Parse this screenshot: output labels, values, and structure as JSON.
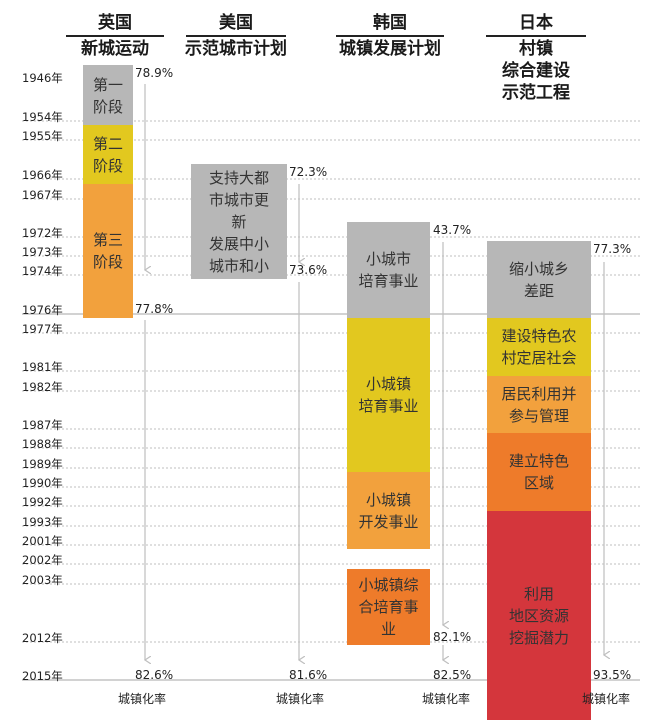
{
  "chart_data": {
    "type": "table",
    "columns": [
      {
        "id": "uk",
        "title": "英国\n新城运动"
      },
      {
        "id": "us",
        "title": "美国\n示范城市计划"
      },
      {
        "id": "kr",
        "title": "韩国\n城镇发展计划"
      },
      {
        "id": "jp",
        "title": "日本\n村镇\n综合建设\n示范工程"
      }
    ],
    "years": [
      "1946年",
      "1954年",
      "1955年",
      "1966年",
      "1967年",
      "1972年",
      "1973年",
      "1974年",
      "1976年",
      "1977年",
      "1981年",
      "1982年",
      "1987年",
      "1988年",
      "1989年",
      "1990年",
      "1992年",
      "1993年",
      "2001年",
      "2002年",
      "2003年",
      "2012年",
      "2015年"
    ],
    "blocks": [
      {
        "col": "uk",
        "label": "第一\n阶段",
        "start": "1946年",
        "end": "1954年",
        "color": "#b7b7b7"
      },
      {
        "col": "uk",
        "label": "第二\n阶段",
        "start": "1955年",
        "end": "1966年",
        "color": "#e2c81f"
      },
      {
        "col": "uk",
        "label": "第三\n阶段",
        "start": "1967年",
        "end": "1976年",
        "color": "#f2a13d"
      },
      {
        "col": "us",
        "label": "支持大都\n市城市更\n新\n发展中小\n城市和小",
        "start": "1966年",
        "end": "1974年",
        "color": "#b7b7b7"
      },
      {
        "col": "kr",
        "label": "小城市\n培育事业",
        "start": "1972年",
        "end": "1976年",
        "color": "#b7b7b7"
      },
      {
        "col": "kr",
        "label": "小城镇\n培育事业",
        "start": "1977年",
        "end": "1989年",
        "color": "#e2c81f"
      },
      {
        "col": "kr",
        "label": "小城镇\n开发事业",
        "start": "1990年",
        "end": "2001年",
        "color": "#f2a13d"
      },
      {
        "col": "kr",
        "label": "小城镇综\n合培育事\n业",
        "start": "2003年",
        "end": "2012年",
        "color": "#ee7b2a"
      },
      {
        "col": "jp",
        "label": "缩小城乡\n差距",
        "start": "1973年",
        "end": "1976年",
        "color": "#b7b7b7"
      },
      {
        "col": "jp",
        "label": "建设特色农\n村定居社会",
        "start": "1977年",
        "end": "1981年",
        "color": "#e2c81f"
      },
      {
        "col": "jp",
        "label": "居民利用并\n参与管理",
        "start": "1982年",
        "end": "1987年",
        "color": "#f2a13d"
      },
      {
        "col": "jp",
        "label": "建立特色\n区域",
        "start": "1988年",
        "end": "1992年",
        "color": "#ee7b2a"
      },
      {
        "col": "jp",
        "label": "利用\n地区资源\n挖掘潜力",
        "start": "1993年",
        "end": "2015年",
        "color": "#d4363c"
      }
    ],
    "urbanization_rates": [
      {
        "col": "uk",
        "year": "1946年",
        "value": "78.9%"
      },
      {
        "col": "uk",
        "year": "1976年",
        "value": "77.8%"
      },
      {
        "col": "uk",
        "year": "2015年",
        "value": "82.6%"
      },
      {
        "col": "us",
        "year": "1966年",
        "value": "72.3%"
      },
      {
        "col": "us",
        "year": "1974年",
        "value": "73.6%"
      },
      {
        "col": "us",
        "year": "2015年",
        "value": "81.6%"
      },
      {
        "col": "kr",
        "year": "1972年",
        "value": "43.7%"
      },
      {
        "col": "kr",
        "year": "2012年",
        "value": "82.1%"
      },
      {
        "col": "kr",
        "year": "2015年",
        "value": "82.5%"
      },
      {
        "col": "jp",
        "year": "1973年",
        "value": "77.3%"
      },
      {
        "col": "jp",
        "year": "2015年",
        "value": "93.5%"
      }
    ],
    "footer_label": "城镇化率",
    "colors": {
      "stage1": "#b7b7b7",
      "stage2": "#e2c81f",
      "stage3": "#f2a13d",
      "stage4": "#ee7b2a",
      "stage5": "#d4363c",
      "arrow": "#bfbfbf",
      "grid": "#999999"
    }
  }
}
